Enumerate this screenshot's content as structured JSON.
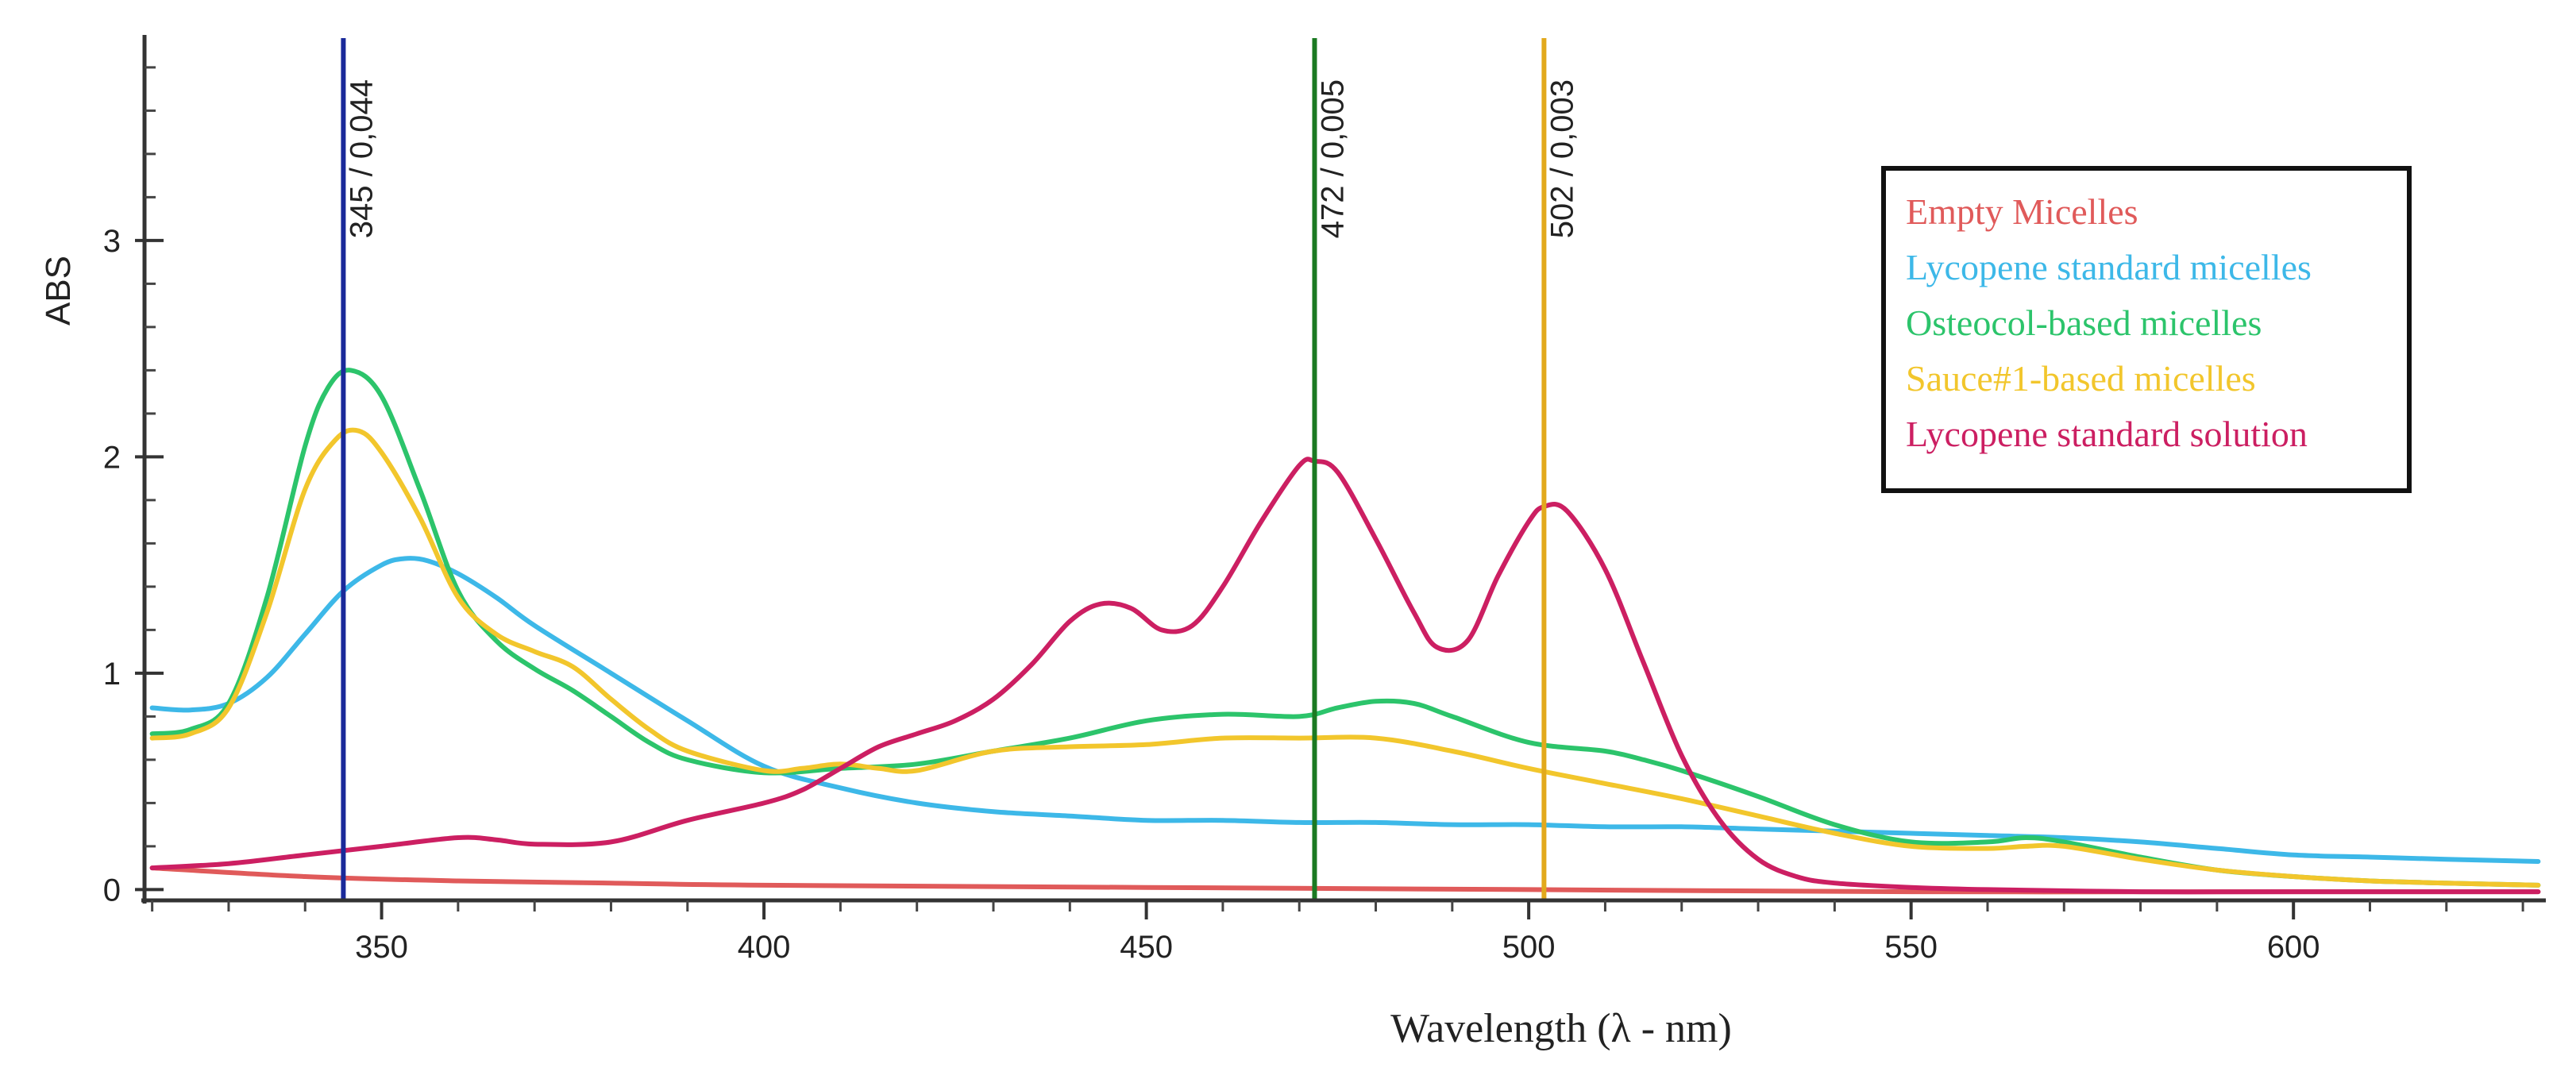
{
  "chart_data": {
    "type": "line",
    "title": "",
    "xlabel": "Wavelength (λ - nm)",
    "ylabel": "ABS",
    "xlim": [
      319,
      633
    ],
    "ylim": [
      -0.05,
      3.95
    ],
    "xticks": [
      350,
      400,
      450,
      500,
      550,
      600
    ],
    "yticks": [
      0,
      1,
      2,
      3
    ],
    "x_minor_step": 10,
    "y_minor_step": 0.2,
    "grid": false,
    "legend_position": "top-right",
    "markers": [
      {
        "x": 345,
        "label": "345 / 0,044",
        "color": "#1a2a9a"
      },
      {
        "x": 472,
        "label": "472 / 0,005",
        "color": "#1b7a22"
      },
      {
        "x": 502,
        "label": "502 / 0,003",
        "color": "#e2a91c"
      }
    ],
    "series": [
      {
        "name": "Empty Micelles",
        "color": "#e05a5a",
        "x": [
          320,
          340,
          360,
          380,
          400,
          450,
          500,
          550,
          600,
          632
        ],
        "y": [
          0.1,
          0.06,
          0.04,
          0.03,
          0.02,
          0.01,
          0.0,
          -0.01,
          -0.01,
          -0.01
        ]
      },
      {
        "name": "Lycopene standard micelles",
        "color": "#3db8e8",
        "x": [
          320,
          325,
          330,
          335,
          340,
          345,
          350,
          353,
          356,
          360,
          365,
          370,
          380,
          390,
          400,
          410,
          420,
          430,
          440,
          450,
          460,
          470,
          480,
          490,
          500,
          510,
          520,
          530,
          540,
          550,
          560,
          570,
          580,
          590,
          600,
          610,
          620,
          632
        ],
        "y": [
          0.84,
          0.83,
          0.86,
          0.98,
          1.18,
          1.38,
          1.5,
          1.53,
          1.52,
          1.46,
          1.35,
          1.22,
          1.0,
          0.78,
          0.57,
          0.47,
          0.4,
          0.36,
          0.34,
          0.32,
          0.32,
          0.31,
          0.31,
          0.3,
          0.3,
          0.29,
          0.29,
          0.28,
          0.27,
          0.26,
          0.25,
          0.24,
          0.22,
          0.19,
          0.16,
          0.15,
          0.14,
          0.13
        ]
      },
      {
        "name": "Osteocol-based micelles",
        "color": "#2cc46b",
        "x": [
          320,
          325,
          330,
          335,
          340,
          343,
          346,
          350,
          355,
          360,
          365,
          370,
          375,
          380,
          385,
          390,
          400,
          410,
          420,
          430,
          440,
          450,
          460,
          470,
          475,
          480,
          485,
          490,
          500,
          510,
          515,
          520,
          530,
          540,
          550,
          560,
          565,
          570,
          580,
          590,
          600,
          610,
          620,
          632
        ],
        "y": [
          0.72,
          0.74,
          0.86,
          1.35,
          2.05,
          2.32,
          2.4,
          2.28,
          1.85,
          1.38,
          1.15,
          1.02,
          0.92,
          0.8,
          0.68,
          0.6,
          0.54,
          0.56,
          0.58,
          0.64,
          0.7,
          0.78,
          0.81,
          0.8,
          0.84,
          0.87,
          0.86,
          0.8,
          0.68,
          0.64,
          0.6,
          0.55,
          0.43,
          0.3,
          0.22,
          0.22,
          0.24,
          0.22,
          0.15,
          0.09,
          0.06,
          0.04,
          0.03,
          0.02
        ]
      },
      {
        "name": "Sauce#1-based micelles",
        "color": "#f2c62c",
        "x": [
          320,
          325,
          330,
          335,
          340,
          344,
          347,
          350,
          355,
          360,
          365,
          370,
          375,
          380,
          385,
          390,
          400,
          405,
          410,
          415,
          420,
          430,
          440,
          450,
          460,
          470,
          480,
          490,
          500,
          510,
          520,
          530,
          540,
          550,
          560,
          565,
          570,
          580,
          590,
          600,
          610,
          620,
          632
        ],
        "y": [
          0.7,
          0.72,
          0.84,
          1.28,
          1.85,
          2.08,
          2.12,
          2.02,
          1.72,
          1.35,
          1.18,
          1.1,
          1.03,
          0.88,
          0.74,
          0.64,
          0.55,
          0.56,
          0.58,
          0.56,
          0.55,
          0.64,
          0.66,
          0.67,
          0.7,
          0.7,
          0.7,
          0.64,
          0.56,
          0.49,
          0.42,
          0.34,
          0.26,
          0.2,
          0.19,
          0.2,
          0.2,
          0.14,
          0.09,
          0.06,
          0.04,
          0.03,
          0.02
        ]
      },
      {
        "name": "Lycopene standard solution",
        "color": "#cc1f62",
        "x": [
          320,
          330,
          340,
          350,
          360,
          365,
          370,
          380,
          390,
          400,
          405,
          410,
          415,
          420,
          425,
          430,
          435,
          440,
          444,
          448,
          452,
          456,
          460,
          465,
          470,
          472,
          475,
          480,
          485,
          488,
          492,
          496,
          500,
          502,
          505,
          510,
          515,
          520,
          525,
          530,
          535,
          540,
          550,
          560,
          580,
          600,
          632
        ],
        "y": [
          0.1,
          0.12,
          0.16,
          0.2,
          0.24,
          0.23,
          0.21,
          0.22,
          0.32,
          0.4,
          0.46,
          0.56,
          0.66,
          0.72,
          0.78,
          0.88,
          1.04,
          1.24,
          1.32,
          1.3,
          1.2,
          1.22,
          1.4,
          1.7,
          1.96,
          1.98,
          1.93,
          1.62,
          1.28,
          1.12,
          1.15,
          1.45,
          1.7,
          1.77,
          1.75,
          1.48,
          1.05,
          0.62,
          0.32,
          0.14,
          0.06,
          0.03,
          0.01,
          0.0,
          -0.01,
          -0.01,
          -0.01
        ]
      }
    ]
  }
}
